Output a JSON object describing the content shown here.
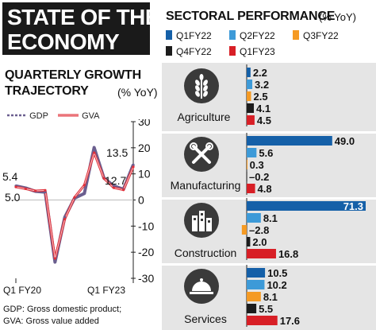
{
  "header": {
    "line1": "STATE OF THE",
    "line2": "ECONOMY"
  },
  "growth": {
    "title_line1": "QUARTERLY GROWTH",
    "title_line2": "TRAJECTORY",
    "unit": "(% YoY)",
    "legend": [
      {
        "name": "GDP",
        "color": "#6b5f8f"
      },
      {
        "name": "GVA",
        "color": "#e0303a"
      }
    ],
    "footnotes": [
      "GDP: Gross domestic product;",
      "GVA: Gross value added"
    ]
  },
  "sectoral": {
    "title": "SECTORAL PERFORMANCE",
    "unit": "(% YoY)",
    "legend": [
      {
        "name": "Q1FY22",
        "color": "#1560a8"
      },
      {
        "name": "Q2FY22",
        "color": "#3d9ad8"
      },
      {
        "name": "Q3FY22",
        "color": "#f59a23"
      },
      {
        "name": "Q4FY22",
        "color": "#1c1c1c"
      },
      {
        "name": "Q1FY23",
        "color": "#d81f26"
      }
    ],
    "sectors": [
      {
        "label": "Agriculture",
        "icon": "wheat-icon"
      },
      {
        "label": "Manufacturing",
        "icon": "tools-icon"
      },
      {
        "label": "Construction",
        "icon": "buildings-icon"
      },
      {
        "label": "Services",
        "icon": "cloche-icon"
      }
    ]
  },
  "chart_data": [
    {
      "type": "line",
      "title": "QUARTERLY GROWTH TRAJECTORY",
      "ylabel": "(% YoY)",
      "ylim": [
        -30,
        30
      ],
      "yticks": [
        30,
        20,
        10,
        0,
        -10,
        -20,
        -30
      ],
      "x_tick_labels": [
        "Q1 FY20",
        "Q1 FY23"
      ],
      "series": [
        {
          "name": "GDP",
          "values": [
            5.4,
            4.6,
            3.3,
            3.0,
            -23.8,
            -6.6,
            0.7,
            2.5,
            20.1,
            8.4,
            5.4,
            4.1,
            13.5
          ]
        },
        {
          "name": "GVA",
          "values": [
            5.0,
            4.3,
            3.5,
            3.7,
            -22.4,
            -7.3,
            1.0,
            5.7,
            18.1,
            8.3,
            4.7,
            3.9,
            12.7
          ]
        }
      ],
      "annotations": [
        {
          "series": "GDP",
          "index": 0,
          "text": "5.4"
        },
        {
          "series": "GVA",
          "index": 0,
          "text": "5.0"
        },
        {
          "series": "GDP",
          "index": 12,
          "text": "13.5"
        },
        {
          "series": "GVA",
          "index": 12,
          "text": "12.7"
        }
      ]
    },
    {
      "type": "bar",
      "orientation": "horizontal",
      "title": "SECTORAL PERFORMANCE",
      "unit": "(% YoY)",
      "categories": [
        "Agriculture",
        "Manufacturing",
        "Construction",
        "Services"
      ],
      "series": [
        {
          "name": "Q1FY22",
          "values": [
            2.2,
            49.0,
            71.3,
            10.5
          ]
        },
        {
          "name": "Q2FY22",
          "values": [
            3.2,
            5.6,
            8.1,
            10.2
          ]
        },
        {
          "name": "Q3FY22",
          "values": [
            2.5,
            0.3,
            -2.8,
            8.1
          ]
        },
        {
          "name": "Q4FY22",
          "values": [
            4.1,
            -0.2,
            2.0,
            5.5
          ]
        },
        {
          "name": "Q1FY23",
          "values": [
            4.5,
            4.8,
            16.8,
            17.6
          ]
        }
      ],
      "value_labels": [
        [
          "2.2",
          "49.0",
          "71.3",
          "10.5"
        ],
        [
          "3.2",
          "5.6",
          "8.1",
          "10.2"
        ],
        [
          "2.5",
          "0.3",
          "–2.8",
          "8.1"
        ],
        [
          "4.1",
          "–0.2",
          "2.0",
          "5.5"
        ],
        [
          "4.5",
          "4.8",
          "16.8",
          "17.6"
        ]
      ]
    }
  ]
}
